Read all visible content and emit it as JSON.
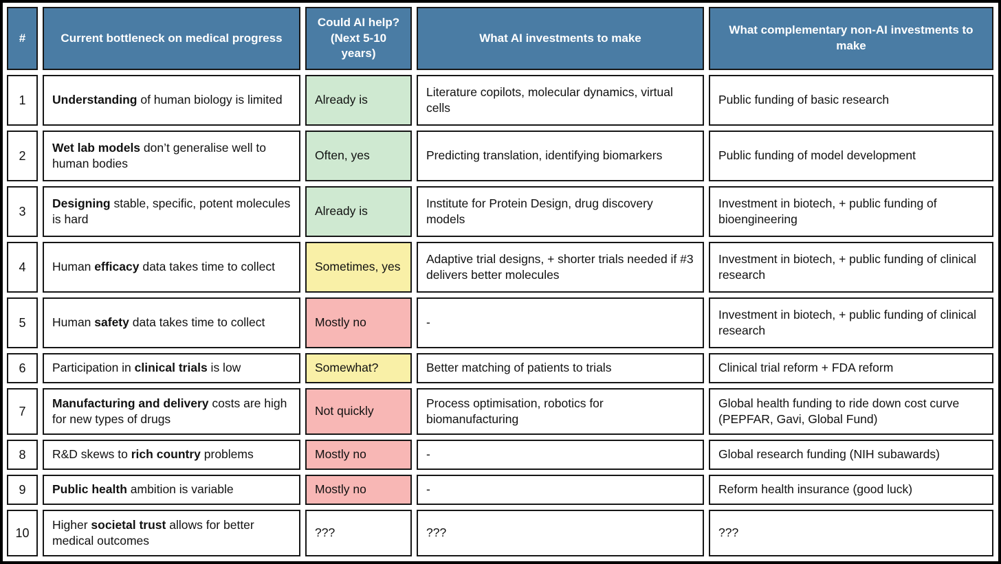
{
  "colors": {
    "header_bg": "#4a7ca4",
    "header_text": "#ffffff",
    "border": "#161616",
    "frame": "#000000",
    "status_green": "#cfe9d1",
    "status_yellow": "#f9f0a7",
    "status_red": "#f8b7b5",
    "status_none": "#ffffff"
  },
  "chart_data": {
    "type": "table",
    "columns": [
      "#",
      "Current bottleneck on medical progress",
      "Could AI help? (Next 5-10 years)",
      "What AI investments to make",
      "What complementary non-AI investments to make"
    ],
    "rows": [
      {
        "num": "1",
        "bottleneck": [
          {
            "t": "Understanding",
            "b": true
          },
          {
            "t": " of human biology is limited",
            "b": false
          }
        ],
        "ai_help": "Already is",
        "ai_help_status": "green",
        "ai_investments": "Literature copilots, molecular dynamics, virtual cells",
        "non_ai_investments": "Public funding of basic research"
      },
      {
        "num": "2",
        "bottleneck": [
          {
            "t": "Wet lab models",
            "b": true
          },
          {
            "t": " don’t generalise well to human bodies",
            "b": false
          }
        ],
        "ai_help": "Often, yes",
        "ai_help_status": "green",
        "ai_investments": "Predicting translation, identifying biomarkers",
        "non_ai_investments": "Public funding of model development"
      },
      {
        "num": "3",
        "bottleneck": [
          {
            "t": "Designing",
            "b": true
          },
          {
            "t": " stable, specific, potent molecules is hard",
            "b": false
          }
        ],
        "ai_help": "Already is",
        "ai_help_status": "green",
        "ai_investments": "Institute for Protein Design, drug discovery models",
        "non_ai_investments": "Investment in biotech, + public funding of bioengineering"
      },
      {
        "num": "4",
        "bottleneck": [
          {
            "t": "Human ",
            "b": false
          },
          {
            "t": "efficacy",
            "b": true
          },
          {
            "t": " data takes time to collect",
            "b": false
          }
        ],
        "ai_help": "Sometimes, yes",
        "ai_help_status": "yellow",
        "ai_investments": "Adaptive trial designs, + shorter trials needed if #3 delivers better molecules",
        "non_ai_investments": "Investment in biotech, + public funding of clinical research"
      },
      {
        "num": "5",
        "bottleneck": [
          {
            "t": "Human ",
            "b": false
          },
          {
            "t": "safety",
            "b": true
          },
          {
            "t": " data takes time to collect",
            "b": false
          }
        ],
        "ai_help": "Mostly no",
        "ai_help_status": "red",
        "ai_investments": "-",
        "non_ai_investments": "Investment in biotech, + public funding of clinical research"
      },
      {
        "num": "6",
        "bottleneck": [
          {
            "t": "Participation in ",
            "b": false
          },
          {
            "t": "clinical trials",
            "b": true
          },
          {
            "t": " is low",
            "b": false
          }
        ],
        "ai_help": "Somewhat?",
        "ai_help_status": "yellow",
        "ai_investments": "Better matching of patients to trials",
        "non_ai_investments": "Clinical trial reform + FDA reform"
      },
      {
        "num": "7",
        "bottleneck": [
          {
            "t": "Manufacturing and delivery",
            "b": true
          },
          {
            "t": " costs are high for new types of drugs",
            "b": false
          }
        ],
        "ai_help": "Not quickly",
        "ai_help_status": "red",
        "ai_investments": "Process optimisation, robotics for biomanufacturing",
        "non_ai_investments": "Global health funding to ride down cost curve (PEPFAR, Gavi, Global Fund)"
      },
      {
        "num": "8",
        "bottleneck": [
          {
            "t": "R&D skews to ",
            "b": false
          },
          {
            "t": "rich country",
            "b": true
          },
          {
            "t": " problems",
            "b": false
          }
        ],
        "ai_help": "Mostly no",
        "ai_help_status": "red",
        "ai_investments": "-",
        "non_ai_investments": "Global research funding (NIH subawards)"
      },
      {
        "num": "9",
        "bottleneck": [
          {
            "t": "Public health",
            "b": true
          },
          {
            "t": " ambition is variable",
            "b": false
          }
        ],
        "ai_help": "Mostly no",
        "ai_help_status": "red",
        "ai_investments": "-",
        "non_ai_investments": "Reform health insurance (good luck)"
      },
      {
        "num": "10",
        "bottleneck": [
          {
            "t": "Higher ",
            "b": false
          },
          {
            "t": "societal trust",
            "b": true
          },
          {
            "t": " allows for better medical outcomes",
            "b": false
          }
        ],
        "ai_help": "???",
        "ai_help_status": "none",
        "ai_investments": "???",
        "non_ai_investments": "???"
      }
    ]
  }
}
